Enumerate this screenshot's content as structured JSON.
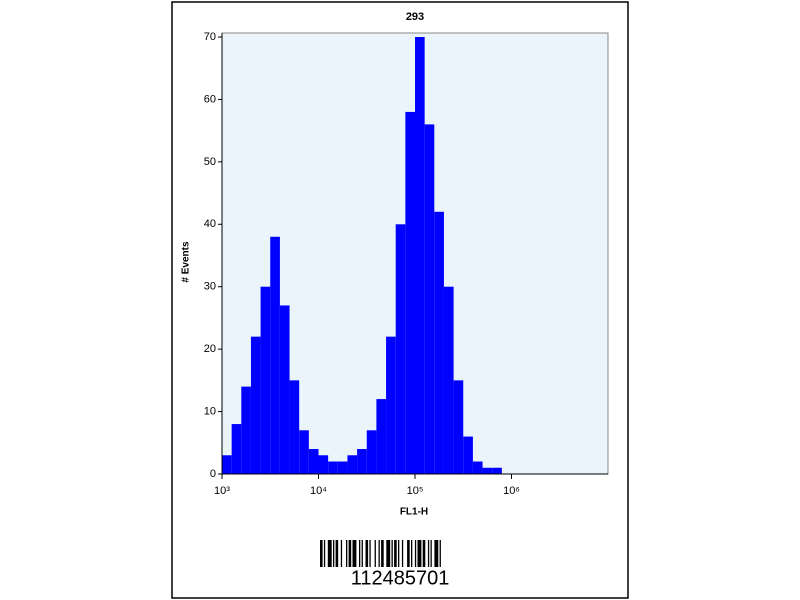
{
  "chart_data": {
    "type": "histogram",
    "title": "293",
    "x_label": "FL1-H",
    "y_label": "# Events",
    "xscale": "log",
    "color": "#0000ff",
    "background": "#eaf4fa",
    "bins": [
      1000,
      1259,
      1585,
      1995,
      2512,
      3162,
      3981,
      5012,
      6310,
      7943,
      10000,
      12589,
      15849,
      19953,
      25119,
      31623,
      39811,
      50119,
      63096,
      79433,
      100000,
      125893,
      158489,
      199526,
      251189,
      316228,
      398107,
      501187,
      630957,
      794328,
      1000000,
      1258925,
      1584893,
      1995262,
      2511886,
      3162278,
      3981072,
      5011872,
      6309573,
      7943282,
      10000000
    ],
    "values": [
      3,
      8,
      14,
      22,
      30,
      38,
      27,
      15,
      7,
      4,
      3,
      2,
      2,
      3,
      4,
      7,
      12,
      22,
      40,
      58,
      70,
      56,
      42,
      30,
      15,
      6,
      2,
      1,
      1,
      0,
      0,
      0,
      0,
      0,
      0,
      0,
      0,
      0,
      0,
      0
    ],
    "xlim": [
      1000,
      10000000
    ],
    "xticks": [
      {
        "value": 1000,
        "label": "10³"
      },
      {
        "value": 10000,
        "label": "10⁴"
      },
      {
        "value": 100000,
        "label": "10⁵"
      },
      {
        "value": 1000000,
        "label": "10⁶"
      }
    ],
    "ylim": [
      0,
      70
    ],
    "yticks": [
      0,
      10,
      20,
      30,
      40,
      50,
      60,
      70
    ]
  },
  "barcode": {
    "number": "112485701"
  }
}
